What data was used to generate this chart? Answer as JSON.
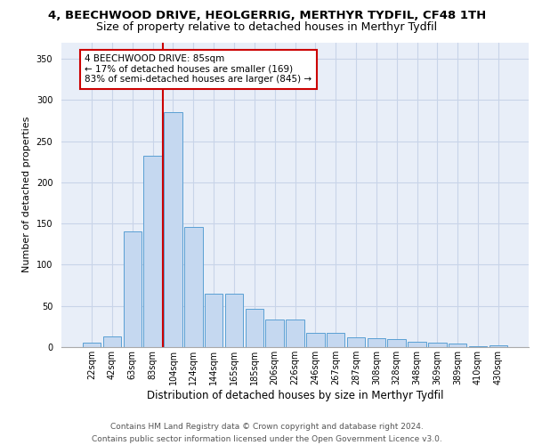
{
  "title": "4, BEECHWOOD DRIVE, HEOLGERRIG, MERTHYR TYDFIL, CF48 1TH",
  "subtitle": "Size of property relative to detached houses in Merthyr Tydfil",
  "xlabel": "Distribution of detached houses by size in Merthyr Tydfil",
  "ylabel": "Number of detached properties",
  "categories": [
    "22sqm",
    "42sqm",
    "63sqm",
    "83sqm",
    "104sqm",
    "124sqm",
    "144sqm",
    "165sqm",
    "185sqm",
    "206sqm",
    "226sqm",
    "246sqm",
    "267sqm",
    "287sqm",
    "308sqm",
    "328sqm",
    "348sqm",
    "369sqm",
    "389sqm",
    "410sqm",
    "430sqm"
  ],
  "values": [
    5,
    13,
    140,
    232,
    285,
    146,
    65,
    65,
    46,
    33,
    33,
    17,
    17,
    12,
    11,
    10,
    7,
    5,
    4,
    1,
    2
  ],
  "bar_color": "#c5d8f0",
  "bar_edge_color": "#5a9fd4",
  "red_line_index": 3,
  "annotation_text": "4 BEECHWOOD DRIVE: 85sqm\n← 17% of detached houses are smaller (169)\n83% of semi-detached houses are larger (845) →",
  "annotation_box_color": "#ffffff",
  "annotation_box_edge": "#cc0000",
  "red_line_color": "#cc0000",
  "ylim": [
    0,
    370
  ],
  "yticks": [
    0,
    50,
    100,
    150,
    200,
    250,
    300,
    350
  ],
  "footer": "Contains HM Land Registry data © Crown copyright and database right 2024.\nContains public sector information licensed under the Open Government Licence v3.0.",
  "background_color": "#e8eef8",
  "grid_color": "#c8d4e8",
  "title_fontsize": 9.5,
  "subtitle_fontsize": 9,
  "xlabel_fontsize": 8.5,
  "ylabel_fontsize": 8,
  "tick_fontsize": 7,
  "footer_fontsize": 6.5,
  "annotation_fontsize": 7.5
}
